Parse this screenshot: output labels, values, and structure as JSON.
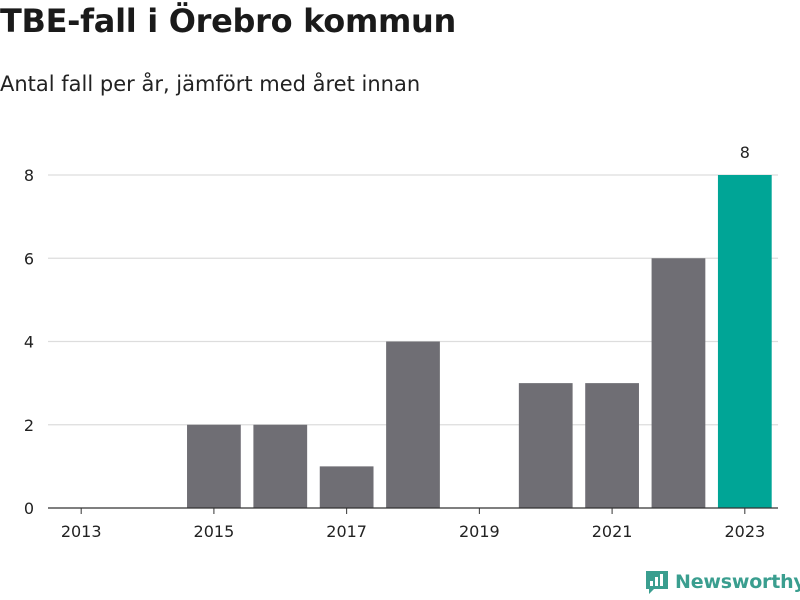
{
  "header": {
    "title": "TBE-fall i Örebro kommun",
    "subtitle": "Antal fall per år, jämfört med året innan"
  },
  "branding": {
    "name": "Newsworthy",
    "color": "#3a9e8f"
  },
  "colors": {
    "bar": "#6f6e74",
    "highlight": "#00a596",
    "grid": "#dddddd",
    "axis": "#333333"
  },
  "chart_data": {
    "type": "bar",
    "title": "TBE-fall i Örebro kommun",
    "subtitle": "Antal fall per år, jämfört med året innan",
    "xlabel": "",
    "ylabel": "",
    "categories": [
      "2013",
      "2014",
      "2015",
      "2016",
      "2017",
      "2018",
      "2019",
      "2020",
      "2021",
      "2022",
      "2023"
    ],
    "x_tick_labels": [
      "2013",
      "2015",
      "2017",
      "2019",
      "2021",
      "2023"
    ],
    "values": [
      0,
      0,
      2,
      2,
      1,
      4,
      0,
      3,
      3,
      6,
      8
    ],
    "highlight_index": 10,
    "data_labels": [
      {
        "index": 10,
        "text": "8"
      }
    ],
    "ylim": [
      0,
      8
    ],
    "y_ticks": [
      0,
      2,
      4,
      6,
      8
    ],
    "grid": true,
    "legend": "none"
  }
}
